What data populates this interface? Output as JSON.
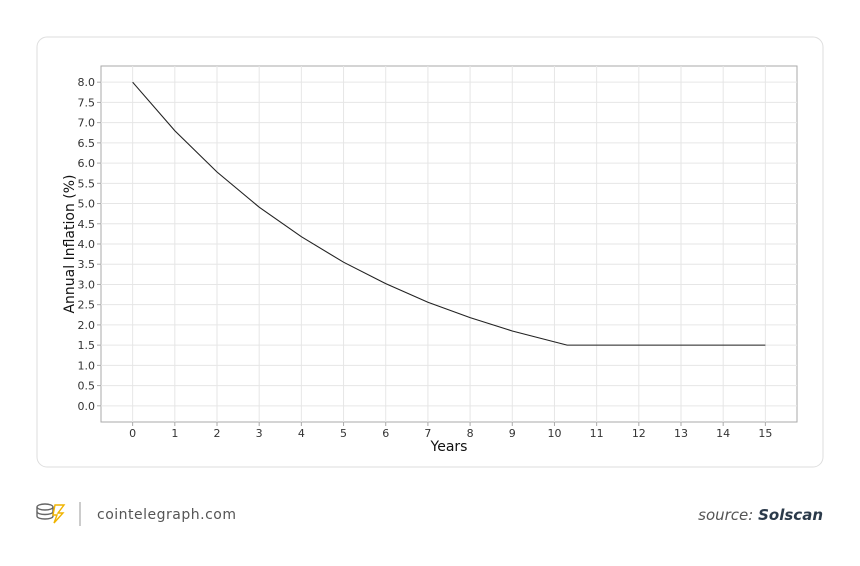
{
  "chart_data": {
    "type": "line",
    "x_label": "Years",
    "y_label": "Annual Inflation (%)",
    "x": [
      0,
      1,
      2,
      3,
      4,
      5,
      6,
      7,
      8,
      9,
      10,
      10.3,
      15
    ],
    "series": [
      {
        "name": "Annual Inflation",
        "color": "#222222",
        "values": [
          8.0,
          6.8,
          5.78,
          4.91,
          4.18,
          3.55,
          3.02,
          2.56,
          2.18,
          1.85,
          1.58,
          1.5,
          1.5
        ]
      }
    ],
    "xlim": [
      -0.75,
      15.75
    ],
    "xticks": [
      0,
      1,
      2,
      3,
      4,
      5,
      6,
      7,
      8,
      9,
      10,
      11,
      12,
      13,
      14,
      15
    ],
    "ylim": [
      -0.4,
      8.4
    ],
    "yticks": [
      {
        "value": 0,
        "label": "0.0"
      },
      0.5,
      {
        "value": 1,
        "label": "1.0"
      },
      1.5,
      {
        "value": 2,
        "label": "2.0"
      },
      2.5,
      {
        "value": 3,
        "label": "3.0"
      },
      3.5,
      {
        "value": 4,
        "label": "4.0"
      },
      4.5,
      {
        "value": 5,
        "label": "5.0"
      },
      5.5,
      {
        "value": 6,
        "label": "6.0"
      },
      6.5,
      {
        "value": 7,
        "label": "7.0"
      },
      7.5,
      {
        "value": 8,
        "label": "8.0"
      }
    ],
    "grid": true
  },
  "footer": {
    "site": "cointelegraph.com",
    "source_label": "source:",
    "source_name": "Solscan"
  }
}
